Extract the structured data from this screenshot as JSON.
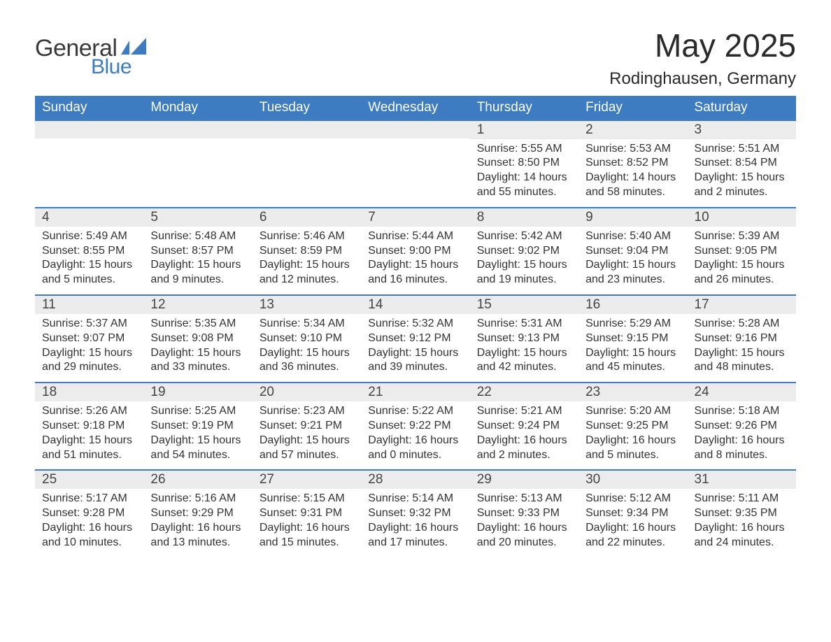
{
  "brand": {
    "word1": "General",
    "word2": "Blue",
    "word1_color": "#3a3a3a",
    "word2_color": "#3d7cc0",
    "shape_color": "#3d7cc0"
  },
  "title": "May 2025",
  "location": "Rodinghausen, Germany",
  "colors": {
    "header_bg": "#3d7cc0",
    "header_text": "#ffffff",
    "daynum_bg": "#ececec",
    "text": "#333333",
    "row_border": "#3d7cc0",
    "page_bg": "#ffffff"
  },
  "weekdays": [
    "Sunday",
    "Monday",
    "Tuesday",
    "Wednesday",
    "Thursday",
    "Friday",
    "Saturday"
  ],
  "weeks": [
    [
      {
        "day": "",
        "sunrise": "",
        "sunset": "",
        "daylight": ""
      },
      {
        "day": "",
        "sunrise": "",
        "sunset": "",
        "daylight": ""
      },
      {
        "day": "",
        "sunrise": "",
        "sunset": "",
        "daylight": ""
      },
      {
        "day": "",
        "sunrise": "",
        "sunset": "",
        "daylight": ""
      },
      {
        "day": "1",
        "sunrise": "Sunrise: 5:55 AM",
        "sunset": "Sunset: 8:50 PM",
        "daylight": "Daylight: 14 hours and 55 minutes."
      },
      {
        "day": "2",
        "sunrise": "Sunrise: 5:53 AM",
        "sunset": "Sunset: 8:52 PM",
        "daylight": "Daylight: 14 hours and 58 minutes."
      },
      {
        "day": "3",
        "sunrise": "Sunrise: 5:51 AM",
        "sunset": "Sunset: 8:54 PM",
        "daylight": "Daylight: 15 hours and 2 minutes."
      }
    ],
    [
      {
        "day": "4",
        "sunrise": "Sunrise: 5:49 AM",
        "sunset": "Sunset: 8:55 PM",
        "daylight": "Daylight: 15 hours and 5 minutes."
      },
      {
        "day": "5",
        "sunrise": "Sunrise: 5:48 AM",
        "sunset": "Sunset: 8:57 PM",
        "daylight": "Daylight: 15 hours and 9 minutes."
      },
      {
        "day": "6",
        "sunrise": "Sunrise: 5:46 AM",
        "sunset": "Sunset: 8:59 PM",
        "daylight": "Daylight: 15 hours and 12 minutes."
      },
      {
        "day": "7",
        "sunrise": "Sunrise: 5:44 AM",
        "sunset": "Sunset: 9:00 PM",
        "daylight": "Daylight: 15 hours and 16 minutes."
      },
      {
        "day": "8",
        "sunrise": "Sunrise: 5:42 AM",
        "sunset": "Sunset: 9:02 PM",
        "daylight": "Daylight: 15 hours and 19 minutes."
      },
      {
        "day": "9",
        "sunrise": "Sunrise: 5:40 AM",
        "sunset": "Sunset: 9:04 PM",
        "daylight": "Daylight: 15 hours and 23 minutes."
      },
      {
        "day": "10",
        "sunrise": "Sunrise: 5:39 AM",
        "sunset": "Sunset: 9:05 PM",
        "daylight": "Daylight: 15 hours and 26 minutes."
      }
    ],
    [
      {
        "day": "11",
        "sunrise": "Sunrise: 5:37 AM",
        "sunset": "Sunset: 9:07 PM",
        "daylight": "Daylight: 15 hours and 29 minutes."
      },
      {
        "day": "12",
        "sunrise": "Sunrise: 5:35 AM",
        "sunset": "Sunset: 9:08 PM",
        "daylight": "Daylight: 15 hours and 33 minutes."
      },
      {
        "day": "13",
        "sunrise": "Sunrise: 5:34 AM",
        "sunset": "Sunset: 9:10 PM",
        "daylight": "Daylight: 15 hours and 36 minutes."
      },
      {
        "day": "14",
        "sunrise": "Sunrise: 5:32 AM",
        "sunset": "Sunset: 9:12 PM",
        "daylight": "Daylight: 15 hours and 39 minutes."
      },
      {
        "day": "15",
        "sunrise": "Sunrise: 5:31 AM",
        "sunset": "Sunset: 9:13 PM",
        "daylight": "Daylight: 15 hours and 42 minutes."
      },
      {
        "day": "16",
        "sunrise": "Sunrise: 5:29 AM",
        "sunset": "Sunset: 9:15 PM",
        "daylight": "Daylight: 15 hours and 45 minutes."
      },
      {
        "day": "17",
        "sunrise": "Sunrise: 5:28 AM",
        "sunset": "Sunset: 9:16 PM",
        "daylight": "Daylight: 15 hours and 48 minutes."
      }
    ],
    [
      {
        "day": "18",
        "sunrise": "Sunrise: 5:26 AM",
        "sunset": "Sunset: 9:18 PM",
        "daylight": "Daylight: 15 hours and 51 minutes."
      },
      {
        "day": "19",
        "sunrise": "Sunrise: 5:25 AM",
        "sunset": "Sunset: 9:19 PM",
        "daylight": "Daylight: 15 hours and 54 minutes."
      },
      {
        "day": "20",
        "sunrise": "Sunrise: 5:23 AM",
        "sunset": "Sunset: 9:21 PM",
        "daylight": "Daylight: 15 hours and 57 minutes."
      },
      {
        "day": "21",
        "sunrise": "Sunrise: 5:22 AM",
        "sunset": "Sunset: 9:22 PM",
        "daylight": "Daylight: 16 hours and 0 minutes."
      },
      {
        "day": "22",
        "sunrise": "Sunrise: 5:21 AM",
        "sunset": "Sunset: 9:24 PM",
        "daylight": "Daylight: 16 hours and 2 minutes."
      },
      {
        "day": "23",
        "sunrise": "Sunrise: 5:20 AM",
        "sunset": "Sunset: 9:25 PM",
        "daylight": "Daylight: 16 hours and 5 minutes."
      },
      {
        "day": "24",
        "sunrise": "Sunrise: 5:18 AM",
        "sunset": "Sunset: 9:26 PM",
        "daylight": "Daylight: 16 hours and 8 minutes."
      }
    ],
    [
      {
        "day": "25",
        "sunrise": "Sunrise: 5:17 AM",
        "sunset": "Sunset: 9:28 PM",
        "daylight": "Daylight: 16 hours and 10 minutes."
      },
      {
        "day": "26",
        "sunrise": "Sunrise: 5:16 AM",
        "sunset": "Sunset: 9:29 PM",
        "daylight": "Daylight: 16 hours and 13 minutes."
      },
      {
        "day": "27",
        "sunrise": "Sunrise: 5:15 AM",
        "sunset": "Sunset: 9:31 PM",
        "daylight": "Daylight: 16 hours and 15 minutes."
      },
      {
        "day": "28",
        "sunrise": "Sunrise: 5:14 AM",
        "sunset": "Sunset: 9:32 PM",
        "daylight": "Daylight: 16 hours and 17 minutes."
      },
      {
        "day": "29",
        "sunrise": "Sunrise: 5:13 AM",
        "sunset": "Sunset: 9:33 PM",
        "daylight": "Daylight: 16 hours and 20 minutes."
      },
      {
        "day": "30",
        "sunrise": "Sunrise: 5:12 AM",
        "sunset": "Sunset: 9:34 PM",
        "daylight": "Daylight: 16 hours and 22 minutes."
      },
      {
        "day": "31",
        "sunrise": "Sunrise: 5:11 AM",
        "sunset": "Sunset: 9:35 PM",
        "daylight": "Daylight: 16 hours and 24 minutes."
      }
    ]
  ]
}
